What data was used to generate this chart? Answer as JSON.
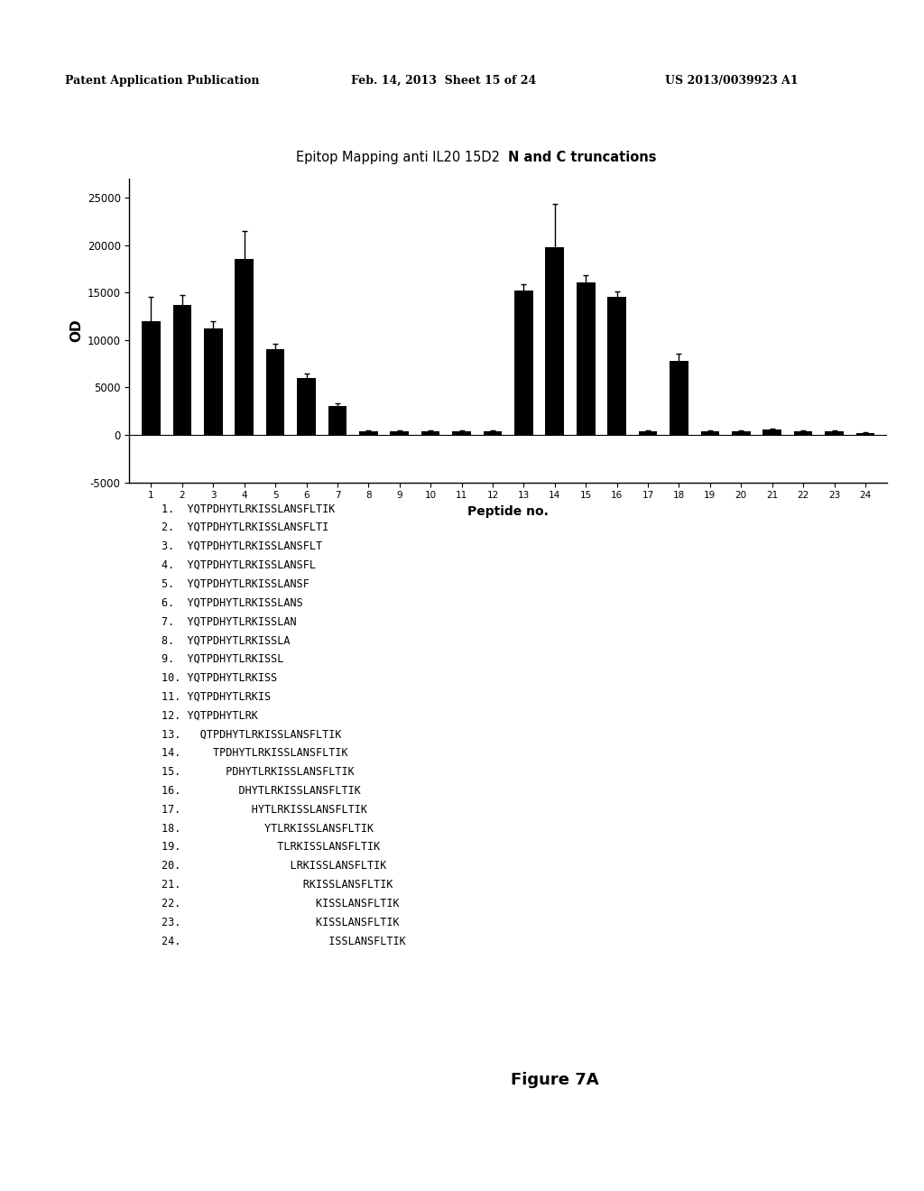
{
  "title_normal": "Epitop Mapping anti IL20 15D2  ",
  "title_bold": "N and C truncations",
  "xlabel": "Peptide no.",
  "ylabel": "OD",
  "xlim": [
    0.3,
    24.7
  ],
  "ylim": [
    -5000,
    27000
  ],
  "yticks": [
    -5000,
    0,
    5000,
    10000,
    15000,
    20000,
    25000
  ],
  "bar_values": [
    12000,
    13700,
    11200,
    18500,
    9000,
    6000,
    3000,
    400,
    400,
    400,
    400,
    400,
    15200,
    19800,
    16100,
    14500,
    400,
    7800,
    400,
    400,
    600,
    400,
    400,
    200
  ],
  "bar_errors": [
    2500,
    1000,
    800,
    3000,
    600,
    500,
    300,
    100,
    100,
    100,
    100,
    100,
    700,
    4500,
    700,
    600,
    100,
    800,
    100,
    100,
    100,
    100,
    100,
    100
  ],
  "bar_color": "#000000",
  "background_color": "#ffffff",
  "figure_caption": "Figure 7A",
  "peptide_list_left": [
    "1.  YQTPDHYTLRKISSLANSFLTIK",
    "2.  YQTPDHYTLRKISSLANSFLTI",
    "3.  YQTPDHYTLRKISSLANSFLT",
    "4.  YQTPDHYTLRKISSLANSFL",
    "5.  YQTPDHYTLRKISSLANSF",
    "6.  YQTPDHYTLRKISSLANS",
    "7.  YQTPDHYTLRKISSLAN",
    "8.  YQTPDHYTLRKISSLA",
    "9.  YQTPDHYTLRKISSL",
    "10. YQTPDHYTLRKISS",
    "11. YQTPDHYTLRKIS",
    "12. YQTPDHYTLRK",
    "13.   QTPDHYTLRKISSLANSFLTIK",
    "14.     TPDHYTLRKISSLANSFLTIK",
    "15.       PDHYTLRKISSLANSFLTIK",
    "16.         DHYTLRKISSLANSFLTIK",
    "17.           HYTLRKISSLANSFLTIK",
    "18.             YTLRKISSLANSFLTIK",
    "19.               TLRKISSLANSFLTIK",
    "20.                 LRKISSLANSFLTIK",
    "21.                   RKISSLANSFLTIK",
    "22.                     KISSLANSFLTIK",
    "23.                     KISSLANSFLTIK",
    "24.                       ISSLANSFLTIK"
  ],
  "header_left": "Patent Application Publication",
  "header_mid": "Feb. 14, 2013  Sheet 15 of 24",
  "header_right": "US 2013/0039923 A1"
}
